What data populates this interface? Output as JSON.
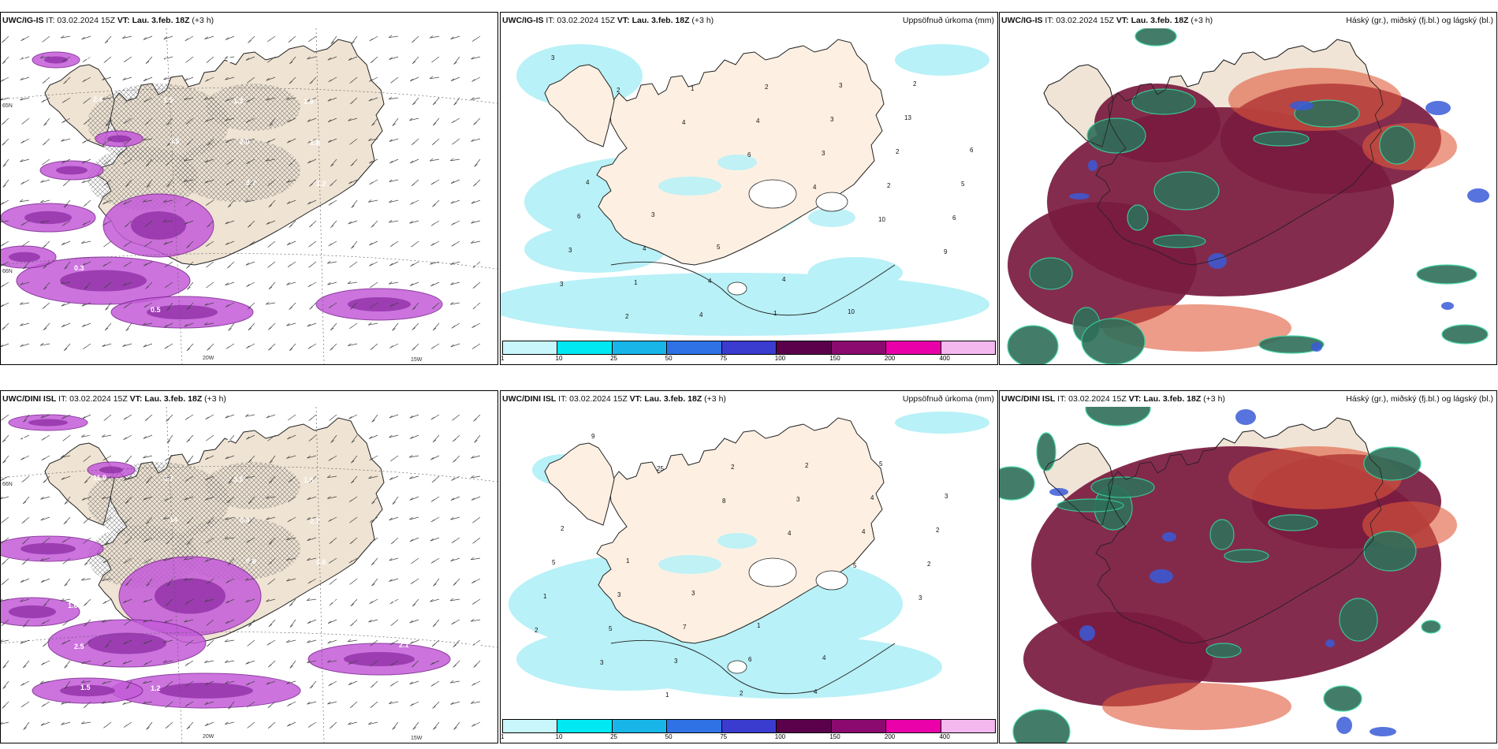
{
  "panels": [
    {
      "id": "p1",
      "title_model": "UWC/IG-IS",
      "title_it": " IT: 03.02.2024 15Z ",
      "title_vt_label": "VT: Lau. 3.feb. 18Z",
      "title_lead": " (+3 h)",
      "title_right": "",
      "kind": "wind",
      "labels": [
        "3.7",
        "2.4",
        "3.5",
        "3.7",
        "4.0",
        "3.1",
        "0.9",
        "0.3",
        "1.5",
        "2.0",
        "2.2",
        "3.1",
        "2.1",
        "2.7",
        "3.0",
        "1.3",
        "1.8",
        "4.1",
        "1.8",
        "0.3",
        "0.5",
        "2.8",
        "1.9",
        "0.4",
        "1.1"
      ],
      "grid_labels": [
        "65N",
        "20W",
        "15W",
        "66N"
      ]
    },
    {
      "id": "p2",
      "title_model": "UWC/IG-IS",
      "title_it": " IT: 03.02.2024 15Z ",
      "title_vt_label": "VT: Lau. 3.feb. 18Z",
      "title_lead": " (+3 h)",
      "title_right": "Uppsöfnuð úrkoma (mm)",
      "kind": "precip",
      "labels": [
        "3",
        "2",
        "4",
        "6",
        "4",
        "10",
        "9",
        "3",
        "2",
        "1",
        "4",
        "3",
        "2",
        "6",
        "3",
        "1",
        "4",
        "2",
        "3",
        "2",
        "5",
        "6",
        "4",
        "4",
        "1",
        "3",
        "13",
        "6",
        "4",
        "3",
        "5",
        "4",
        "10",
        "2"
      ],
      "colorbar_ticks": [
        "1",
        "10",
        "25",
        "50",
        "75",
        "100",
        "150",
        "200",
        "400"
      ],
      "colorbar_colors": [
        "#c8f6fa",
        "#00e8f2",
        "#18b6e8",
        "#2f72e6",
        "#3a3ccf",
        "#5b004a",
        "#8b0a70",
        "#e900a8",
        "#f4b8ef"
      ]
    },
    {
      "id": "p3",
      "title_model": "UWC/IG-IS",
      "title_it": " IT: 03.02.2024 15Z ",
      "title_vt_label": "VT: Lau. 3.feb. 18Z",
      "title_lead": " (+3 h)",
      "title_right": "Háský (gr.), miðský (fj.bl.) og lágský (bl.)",
      "kind": "cloud"
    },
    {
      "id": "p4",
      "title_model": "UWC/DINI ISL",
      "title_it": " IT: 03.02.2024 15Z ",
      "title_vt_label": "VT: Lau. 3.feb. 18Z",
      "title_lead": " (+3 h)",
      "title_right": "",
      "kind": "wind",
      "labels": [
        "9.2",
        "11.9",
        "14",
        "0.8",
        "10.8",
        "2.1",
        "1.2",
        "2.0",
        "0.7",
        "0.4",
        "0.6",
        "0.3",
        "0.5",
        "1.5",
        "3.3",
        "3.5",
        "2.7",
        "3.2",
        "1.9",
        "2.5",
        "1.2",
        "2.4",
        "1.8",
        "1.1",
        "0.8",
        "1.6"
      ],
      "grid_labels": [
        "66N",
        "20W",
        "15W"
      ]
    },
    {
      "id": "p5",
      "title_model": "UWC/DINI ISL",
      "title_it": " IT: 03.02.2024 15Z ",
      "title_vt_label": "VT: Lau. 3.feb. 18Z",
      "title_lead": " (+3 h)",
      "title_right": "Uppsöfnuð úrkoma (mm)",
      "kind": "precip",
      "labels": [
        "9",
        "25",
        "8",
        "4",
        "5",
        "3",
        "2",
        "3",
        "1",
        "2",
        "3",
        "4",
        "2",
        "1",
        "5",
        "3",
        "2",
        "2",
        "4",
        "2",
        "5",
        "3",
        "7",
        "6",
        "4",
        "5",
        "3",
        "2",
        "1",
        "3",
        "1",
        "4"
      ],
      "colorbar_ticks": [
        "1",
        "10",
        "25",
        "50",
        "75",
        "100",
        "150",
        "200",
        "400"
      ],
      "colorbar_colors": [
        "#c8f6fa",
        "#00e8f2",
        "#18b6e8",
        "#2f72e6",
        "#3a3ccf",
        "#5b004a",
        "#8b0a70",
        "#e900a8",
        "#f4b8ef"
      ]
    },
    {
      "id": "p6",
      "title_model": "UWC/DINI ISL",
      "title_it": " IT: 03.02.2024 15Z ",
      "title_vt_label": "VT: Lau. 3.feb. 18Z",
      "title_lead": " (+3 h)",
      "title_right": "Háský (gr.), miðský (fj.bl.) og lágský (bl.)",
      "kind": "cloud"
    }
  ]
}
